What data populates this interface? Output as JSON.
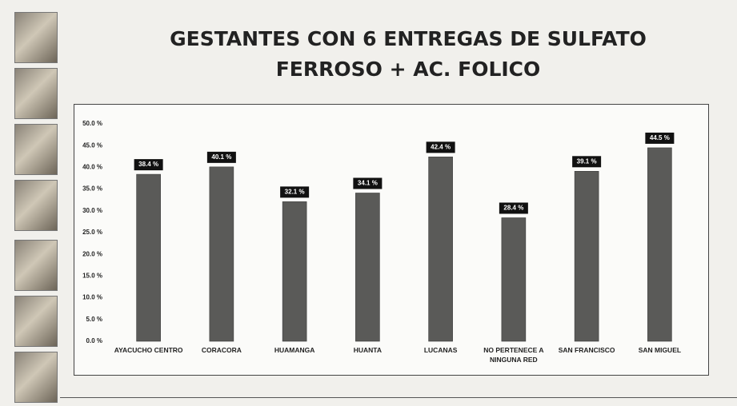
{
  "chart_data": {
    "type": "bar",
    "title": "GESTANTES CON 6 ENTREGAS DE SULFATO FERROSO + AC. FOLICO",
    "categories": [
      "AYACUCHO CENTRO",
      "CORACORA",
      "HUAMANGA",
      "HUANTA",
      "LUCANAS",
      "NO PERTENECE A NINGUNA RED",
      "SAN FRANCISCO",
      "SAN MIGUEL"
    ],
    "values": [
      38.4,
      40.1,
      32.1,
      34.1,
      42.4,
      28.4,
      39.1,
      44.5
    ],
    "value_labels": [
      "38.4 %",
      "40.1 %",
      "32.1 %",
      "34.1 %",
      "42.4 %",
      "28.4 %",
      "39.1 %",
      "44.5 %"
    ],
    "color": "#5a5a58",
    "ylim": [
      0,
      50
    ],
    "yticks": [
      {
        "value": 0,
        "label": "0.0 %"
      },
      {
        "value": 5,
        "label": "5.0 %"
      },
      {
        "value": 10,
        "label": "10.0 %"
      },
      {
        "value": 15,
        "label": "15.0 %"
      },
      {
        "value": 20,
        "label": "20.0 %"
      },
      {
        "value": 25,
        "label": "25.0 %"
      },
      {
        "value": 30,
        "label": "30.0 %"
      },
      {
        "value": 35,
        "label": "35.0 %"
      },
      {
        "value": 40,
        "label": "40.0 %"
      },
      {
        "value": 45,
        "label": "45.0 %"
      },
      {
        "value": 50,
        "label": "50.0 %"
      }
    ]
  }
}
